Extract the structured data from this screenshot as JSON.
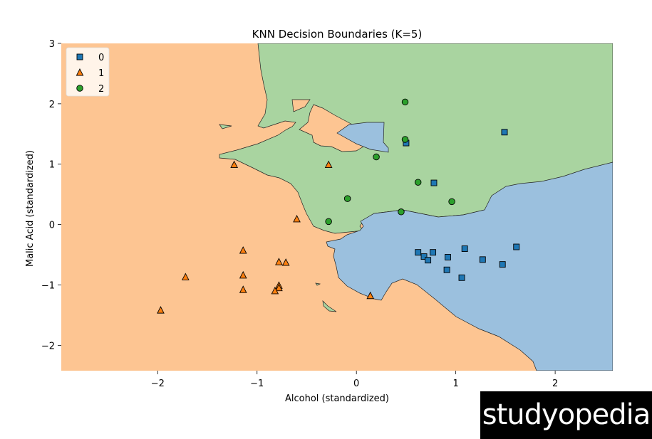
{
  "chart_data": {
    "type": "scatter",
    "title": "KNN Decision Boundaries (K=5)",
    "xlabel": "Alcohol (standardized)",
    "ylabel": "Malic Acid (standardized)",
    "xlim": [
      -2.97,
      2.58
    ],
    "ylim": [
      -2.42,
      3.0
    ],
    "xticks": [
      -2,
      -1,
      0,
      1,
      2
    ],
    "yticks": [
      -2,
      -1,
      0,
      1,
      2,
      3
    ],
    "grid": false,
    "legend_position": "top-left",
    "region_colors": {
      "0": "#9bc0de",
      "1": "#fdc592",
      "2": "#a9d4a0"
    },
    "series": [
      {
        "name": "0",
        "marker": "square",
        "color": "#1f77b4",
        "points": [
          [
            0.5,
            1.35
          ],
          [
            1.49,
            1.53
          ],
          [
            0.78,
            0.69
          ],
          [
            0.62,
            -0.46
          ],
          [
            0.68,
            -0.53
          ],
          [
            0.72,
            -0.59
          ],
          [
            0.77,
            -0.46
          ],
          [
            0.92,
            -0.54
          ],
          [
            1.09,
            -0.4
          ],
          [
            1.27,
            -0.58
          ],
          [
            1.61,
            -0.37
          ],
          [
            1.47,
            -0.66
          ],
          [
            0.91,
            -0.75
          ],
          [
            1.06,
            -0.88
          ]
        ]
      },
      {
        "name": "1",
        "marker": "triangle",
        "color": "#ff7f0e",
        "points": [
          [
            -1.23,
            0.99
          ],
          [
            -0.28,
            0.99
          ],
          [
            -0.6,
            0.09
          ],
          [
            -1.14,
            -0.43
          ],
          [
            -1.72,
            -0.87
          ],
          [
            -1.14,
            -0.84
          ],
          [
            -0.78,
            -0.62
          ],
          [
            -0.71,
            -0.63
          ],
          [
            -0.78,
            -1.01
          ],
          [
            -0.78,
            -1.05
          ],
          [
            -0.82,
            -1.1
          ],
          [
            -1.14,
            -1.08
          ],
          [
            -1.97,
            -1.42
          ],
          [
            0.14,
            -1.18
          ]
        ]
      },
      {
        "name": "2",
        "marker": "circle",
        "color": "#2ca02c",
        "points": [
          [
            0.49,
            2.03
          ],
          [
            0.49,
            1.41
          ],
          [
            0.2,
            1.12
          ],
          [
            0.62,
            0.7
          ],
          [
            0.96,
            0.38
          ],
          [
            -0.09,
            0.43
          ],
          [
            0.45,
            0.21
          ],
          [
            -0.28,
            0.05
          ]
        ]
      }
    ]
  },
  "watermark": {
    "text": "studyopedia"
  }
}
